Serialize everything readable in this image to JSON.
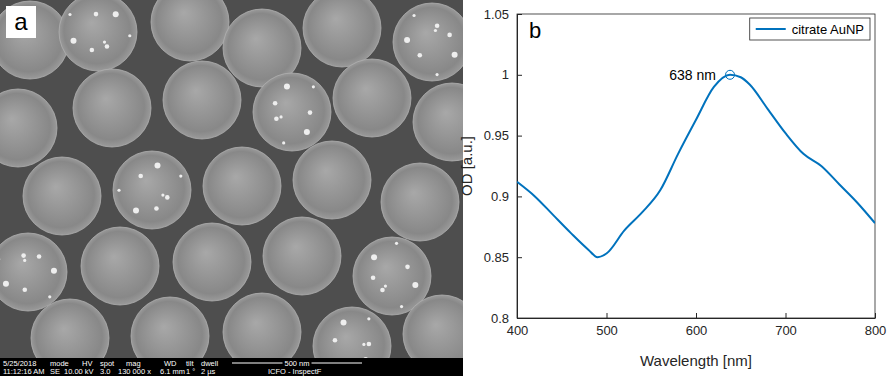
{
  "sem_image": {
    "label": "a",
    "info_headers": [
      "5/25/2018",
      "mode",
      "HV",
      "spot",
      "mag",
      "WD",
      "tilt",
      "dwell"
    ],
    "info_values": [
      "11:12:16 AM",
      "SE",
      "10.00 kV",
      "3.0",
      "130 000 x",
      "6.1 mm",
      "1 °",
      "2 µs",
      "ICFO - InspectF"
    ],
    "scale_bar": "500 nm"
  },
  "chart_data": {
    "type": "line",
    "label": "b",
    "xlabel": "Wavelength [nm]",
    "ylabel": "OD [a.u.]",
    "x": [
      400,
      420,
      440,
      460,
      480,
      490,
      500,
      520,
      540,
      560,
      580,
      600,
      620,
      638,
      650,
      660,
      680,
      700,
      720,
      740,
      760,
      780,
      800
    ],
    "series": [
      {
        "name": "citrate AuNP",
        "color": "#0072bd",
        "values": [
          0.912,
          0.9,
          0.885,
          0.87,
          0.856,
          0.85,
          0.853,
          0.872,
          0.887,
          0.905,
          0.935,
          0.963,
          0.99,
          1.0,
          0.998,
          0.992,
          0.972,
          0.952,
          0.935,
          0.925,
          0.91,
          0.895,
          0.878
        ]
      }
    ],
    "annotations": [
      {
        "text": "638 nm",
        "x": 638,
        "y": 1.0,
        "marker": "circle"
      }
    ],
    "xlim": [
      400,
      800
    ],
    "xticks": [
      400,
      500,
      600,
      700,
      800
    ],
    "ylim": [
      0.8,
      1.05
    ],
    "yticks": [
      0.8,
      0.85,
      0.9,
      0.95,
      1,
      1.05
    ],
    "grid": false,
    "legend": "northeast"
  }
}
